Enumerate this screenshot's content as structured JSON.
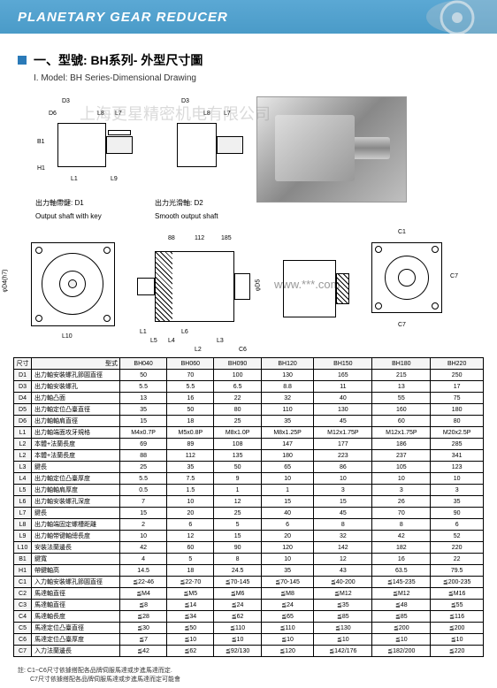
{
  "header": {
    "title": "PLANETARY  GEAR  REDUCER"
  },
  "section": {
    "title_cn": "一、型號: BH系列- 外型尺寸圖",
    "subtitle": "I. Model: BH Series-Dimensional Drawing"
  },
  "watermark": "上海更星精密机电有限公司",
  "drawings": {
    "shaft1": {
      "label_cn": "出力軸帶鍵: D1",
      "label_en": "Output shaft with key",
      "dims": [
        "D3",
        "D6",
        "L8",
        "L7",
        "B1",
        "H1",
        "L1",
        "L9"
      ]
    },
    "shaft2": {
      "label_cn": "出力光滑軸: D2",
      "label_en": "Smooth output shaft",
      "dims": [
        "D3",
        "L8",
        "L7"
      ]
    },
    "front": {
      "dims": [
        "L10",
        "φD4(h7)"
      ]
    },
    "side": {
      "dims": [
        "88",
        "112",
        "185",
        "L5",
        "L4",
        "L6",
        "L2",
        "L3",
        "φD5",
        "L1",
        "C6"
      ]
    },
    "rear": {
      "dims": [
        "C1",
        "C7",
        "C7"
      ]
    }
  },
  "table": {
    "header_dim": "尺寸",
    "header_type": "型式",
    "models": [
      "BH040",
      "BH060",
      "BH090",
      "BH120",
      "BH150",
      "BH180",
      "BH220"
    ],
    "rows": [
      {
        "d": "D1",
        "l": "出力軸安裝螺孔節圓直徑",
        "v": [
          "50",
          "70",
          "100",
          "130",
          "165",
          "215",
          "250"
        ]
      },
      {
        "d": "D3",
        "l": "出力軸安裝螺孔",
        "v": [
          "5.5",
          "5.5",
          "6.5",
          "8.8",
          "11",
          "13",
          "17"
        ]
      },
      {
        "d": "D4",
        "l": "出力軸凸面",
        "v": [
          "13",
          "16",
          "22",
          "32",
          "40",
          "55",
          "75"
        ]
      },
      {
        "d": "D5",
        "l": "出力軸定位凸臺直徑",
        "v": [
          "35",
          "50",
          "80",
          "110",
          "130",
          "160",
          "180"
        ]
      },
      {
        "d": "D6",
        "l": "出力軸軸肩直徑",
        "v": [
          "15",
          "18",
          "25",
          "35",
          "45",
          "60",
          "80"
        ]
      },
      {
        "d": "L1",
        "l": "出力軸端面攻牙規格",
        "v": [
          "M4x0.7P",
          "M5x0.8P",
          "M8x1.0P",
          "M8x1.25P",
          "M12x1.75P",
          "M12x1.75P",
          "M20x2.5P"
        ]
      },
      {
        "d": "L2",
        "l": "本體+法蘭長度",
        "v": [
          "69",
          "89",
          "108",
          "147",
          "177",
          "186",
          "285"
        ]
      },
      {
        "d": "L2",
        "l": "本體+法蘭長度",
        "v": [
          "88",
          "112",
          "135",
          "180",
          "223",
          "237",
          "341"
        ]
      },
      {
        "d": "L3",
        "l": "鍵長",
        "v": [
          "25",
          "35",
          "50",
          "65",
          "86",
          "105",
          "123"
        ]
      },
      {
        "d": "L4",
        "l": "出力軸定位凸臺厚度",
        "v": [
          "5.5",
          "7.5",
          "9",
          "10",
          "10",
          "10",
          "10"
        ]
      },
      {
        "d": "L5",
        "l": "出力軸軸肩厚度",
        "v": [
          "0.5",
          "1.5",
          "1",
          "1",
          "3",
          "3",
          "3"
        ]
      },
      {
        "d": "L6",
        "l": "出力軸安裝螺孔深度",
        "v": [
          "7",
          "10",
          "12",
          "15",
          "15",
          "26",
          "35"
        ]
      },
      {
        "d": "L7",
        "l": "鍵長",
        "v": [
          "15",
          "20",
          "25",
          "40",
          "45",
          "70",
          "90"
        ]
      },
      {
        "d": "L8",
        "l": "出力軸端固定螺槽距離",
        "v": [
          "2",
          "6",
          "5",
          "6",
          "8",
          "8",
          "6"
        ]
      },
      {
        "d": "L9",
        "l": "出力軸带键軸總長度",
        "v": [
          "10",
          "12",
          "15",
          "20",
          "32",
          "42",
          "52"
        ]
      },
      {
        "d": "L10",
        "l": "安裝法蘭邊長",
        "v": [
          "42",
          "60",
          "90",
          "120",
          "142",
          "182",
          "220"
        ]
      },
      {
        "d": "B1",
        "l": "鍵寬",
        "v": [
          "4",
          "5",
          "8",
          "10",
          "12",
          "16",
          "22"
        ]
      },
      {
        "d": "H1",
        "l": "帶鍵軸高",
        "v": [
          "14.5",
          "18",
          "24.5",
          "35",
          "43",
          "63.5",
          "79.5"
        ]
      },
      {
        "d": "C1",
        "l": "入力軸安裝螺孔節圓直徑",
        "v": [
          "≦22-46",
          "≦22-70",
          "≦70-145",
          "≦70-145",
          "≦40-200",
          "≦145-235",
          "≦200-235"
        ]
      },
      {
        "d": "C2",
        "l": "馬達軸直徑",
        "v": [
          "≦M4",
          "≦M5",
          "≦M6",
          "≦M8",
          "≦M12",
          "≦M12",
          "≦M16"
        ]
      },
      {
        "d": "C3",
        "l": "馬達軸直徑",
        "v": [
          "≦8",
          "≦14",
          "≦24",
          "≦24",
          "≦35",
          "≦48",
          "≦55"
        ]
      },
      {
        "d": "C4",
        "l": "馬達軸長度",
        "v": [
          "≦28",
          "≦34",
          "≦62",
          "≦65",
          "≦85",
          "≦85",
          "≦116"
        ]
      },
      {
        "d": "C5",
        "l": "馬達定位凸臺直徑",
        "v": [
          "≦30",
          "≦50",
          "≦110",
          "≦110",
          "≦130",
          "≦200",
          "≦200"
        ]
      },
      {
        "d": "C6",
        "l": "馬達定位凸臺厚度",
        "v": [
          "≦7",
          "≦10",
          "≦10",
          "≦10",
          "≦10",
          "≦10",
          "≦10"
        ]
      },
      {
        "d": "C7",
        "l": "入力法蘭邊長",
        "v": [
          "≦42",
          "≦62",
          "≦92/130",
          "≦120",
          "≦142/176",
          "≦182/200",
          "≦220"
        ]
      }
    ]
  },
  "footer": {
    "note1": "註: C1~C6尺寸依據搭配各品牌伺服馬達或步進馬達而定.",
    "note2": "　　C7尺寸依據搭配各品牌伺服馬達或步進馬達而定可能會"
  },
  "url_mask": "www.***.com"
}
